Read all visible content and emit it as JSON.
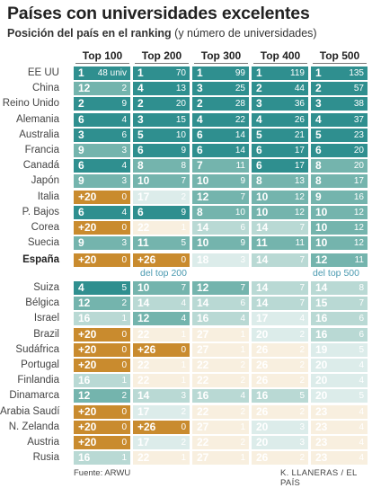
{
  "title": "Países con universidades excelentes",
  "subtitle_bold": "Posición del país en el ranking",
  "subtitle_rest": " (y número de universidades)",
  "source": "Fuente: ARWU",
  "credit": "K. LLANERAS / EL PAÍS",
  "notes": {
    "top200": "del top 200",
    "top500": "del top 500"
  },
  "colors": {
    "teal_dark": "#2f8f8f",
    "teal_mid": "#74b4ad",
    "teal_light": "#b9d9d4",
    "teal_pale": "#dcecea",
    "orange_dark": "#c98b2e",
    "orange_pale": "#f3e2c3",
    "orange_faint": "#f8efdf"
  },
  "chart_data": {
    "type": "table",
    "columns": [
      "Top 100",
      "Top 200",
      "Top 300",
      "Top 400",
      "Top 500"
    ],
    "unit_label": "univ",
    "rows": [
      {
        "country": "EE UU",
        "cells": [
          [
            "1",
            "48"
          ],
          [
            "1",
            "70"
          ],
          [
            "1",
            "99"
          ],
          [
            "1",
            "119"
          ],
          [
            "1",
            "135"
          ]
        ]
      },
      {
        "country": "China",
        "cells": [
          [
            "12",
            "2"
          ],
          [
            "4",
            "13"
          ],
          [
            "3",
            "25"
          ],
          [
            "2",
            "44"
          ],
          [
            "2",
            "57"
          ]
        ]
      },
      {
        "country": "Reino Unido",
        "cells": [
          [
            "2",
            "9"
          ],
          [
            "2",
            "20"
          ],
          [
            "2",
            "28"
          ],
          [
            "3",
            "36"
          ],
          [
            "3",
            "38"
          ]
        ]
      },
      {
        "country": "Alemania",
        "cells": [
          [
            "6",
            "4"
          ],
          [
            "3",
            "15"
          ],
          [
            "4",
            "22"
          ],
          [
            "4",
            "26"
          ],
          [
            "4",
            "37"
          ]
        ]
      },
      {
        "country": "Australia",
        "cells": [
          [
            "3",
            "6"
          ],
          [
            "5",
            "10"
          ],
          [
            "6",
            "14"
          ],
          [
            "5",
            "21"
          ],
          [
            "5",
            "23"
          ]
        ]
      },
      {
        "country": "Francia",
        "cells": [
          [
            "9",
            "3"
          ],
          [
            "6",
            "9"
          ],
          [
            "6",
            "14"
          ],
          [
            "6",
            "17"
          ],
          [
            "6",
            "20"
          ]
        ]
      },
      {
        "country": "Canadá",
        "cells": [
          [
            "6",
            "4"
          ],
          [
            "8",
            "8"
          ],
          [
            "7",
            "11"
          ],
          [
            "6",
            "17"
          ],
          [
            "8",
            "20"
          ]
        ]
      },
      {
        "country": "Japón",
        "cells": [
          [
            "9",
            "3"
          ],
          [
            "10",
            "7"
          ],
          [
            "10",
            "9"
          ],
          [
            "8",
            "13"
          ],
          [
            "8",
            "17"
          ]
        ]
      },
      {
        "country": "Italia",
        "cells": [
          [
            "+20",
            "0"
          ],
          [
            "17",
            "2"
          ],
          [
            "12",
            "7"
          ],
          [
            "10",
            "12"
          ],
          [
            "9",
            "16"
          ]
        ]
      },
      {
        "country": "P. Bajos",
        "cells": [
          [
            "6",
            "4"
          ],
          [
            "6",
            "9"
          ],
          [
            "8",
            "10"
          ],
          [
            "10",
            "12"
          ],
          [
            "10",
            "12"
          ]
        ]
      },
      {
        "country": "Corea",
        "cells": [
          [
            "+20",
            "0"
          ],
          [
            "22",
            "1"
          ],
          [
            "14",
            "6"
          ],
          [
            "14",
            "7"
          ],
          [
            "10",
            "12"
          ]
        ]
      },
      {
        "country": "Suecia",
        "cells": [
          [
            "9",
            "3"
          ],
          [
            "11",
            "5"
          ],
          [
            "10",
            "9"
          ],
          [
            "11",
            "11"
          ],
          [
            "10",
            "12"
          ]
        ]
      },
      {
        "country": "España",
        "bold": true,
        "cells": [
          [
            "+20",
            "0"
          ],
          [
            "+26",
            "0"
          ],
          [
            "18",
            "3"
          ],
          [
            "14",
            "7"
          ],
          [
            "12",
            "11"
          ]
        ]
      },
      {
        "country": "Suiza",
        "cells": [
          [
            "4",
            "5"
          ],
          [
            "10",
            "7"
          ],
          [
            "12",
            "7"
          ],
          [
            "14",
            "7"
          ],
          [
            "14",
            "8"
          ]
        ]
      },
      {
        "country": "Bélgica",
        "cells": [
          [
            "12",
            "2"
          ],
          [
            "14",
            "4"
          ],
          [
            "14",
            "6"
          ],
          [
            "14",
            "7"
          ],
          [
            "15",
            "7"
          ]
        ]
      },
      {
        "country": "Israel",
        "cells": [
          [
            "16",
            "1"
          ],
          [
            "12",
            "4"
          ],
          [
            "16",
            "4"
          ],
          [
            "17",
            "4"
          ],
          [
            "16",
            "6"
          ]
        ]
      },
      {
        "country": "Brazil",
        "cells": [
          [
            "+20",
            "0"
          ],
          [
            "22",
            "1"
          ],
          [
            "27",
            "1"
          ],
          [
            "20",
            "2"
          ],
          [
            "16",
            "6"
          ]
        ]
      },
      {
        "country": "Sudáfrica",
        "cells": [
          [
            "+20",
            "0"
          ],
          [
            "+26",
            "0"
          ],
          [
            "27",
            "1"
          ],
          [
            "26",
            "2"
          ],
          [
            "19",
            "5"
          ]
        ]
      },
      {
        "country": "Portugal",
        "cells": [
          [
            "+20",
            "0"
          ],
          [
            "22",
            "1"
          ],
          [
            "22",
            "2"
          ],
          [
            "26",
            "2"
          ],
          [
            "20",
            "4"
          ]
        ]
      },
      {
        "country": "Finlandia",
        "cells": [
          [
            "16",
            "1"
          ],
          [
            "22",
            "1"
          ],
          [
            "22",
            "2"
          ],
          [
            "26",
            "2"
          ],
          [
            "20",
            "4"
          ]
        ]
      },
      {
        "country": "Dinamarca",
        "cells": [
          [
            "12",
            "2"
          ],
          [
            "14",
            "3"
          ],
          [
            "16",
            "4"
          ],
          [
            "16",
            "5"
          ],
          [
            "20",
            "5"
          ]
        ]
      },
      {
        "country": "Arabia Saudí",
        "cells": [
          [
            "+20",
            "0"
          ],
          [
            "17",
            "2"
          ],
          [
            "22",
            "2"
          ],
          [
            "26",
            "2"
          ],
          [
            "23",
            "4"
          ]
        ]
      },
      {
        "country": "N. Zelanda",
        "cells": [
          [
            "+20",
            "0"
          ],
          [
            "+26",
            "0"
          ],
          [
            "27",
            "1"
          ],
          [
            "20",
            "3"
          ],
          [
            "23",
            "4"
          ]
        ]
      },
      {
        "country": "Austria",
        "cells": [
          [
            "+20",
            "0"
          ],
          [
            "17",
            "2"
          ],
          [
            "22",
            "2"
          ],
          [
            "20",
            "3"
          ],
          [
            "23",
            "4"
          ]
        ]
      },
      {
        "country": "Rusia",
        "cells": [
          [
            "16",
            "1"
          ],
          [
            "22",
            "1"
          ],
          [
            "27",
            "1"
          ],
          [
            "26",
            "2"
          ],
          [
            "23",
            "4"
          ]
        ]
      }
    ]
  }
}
